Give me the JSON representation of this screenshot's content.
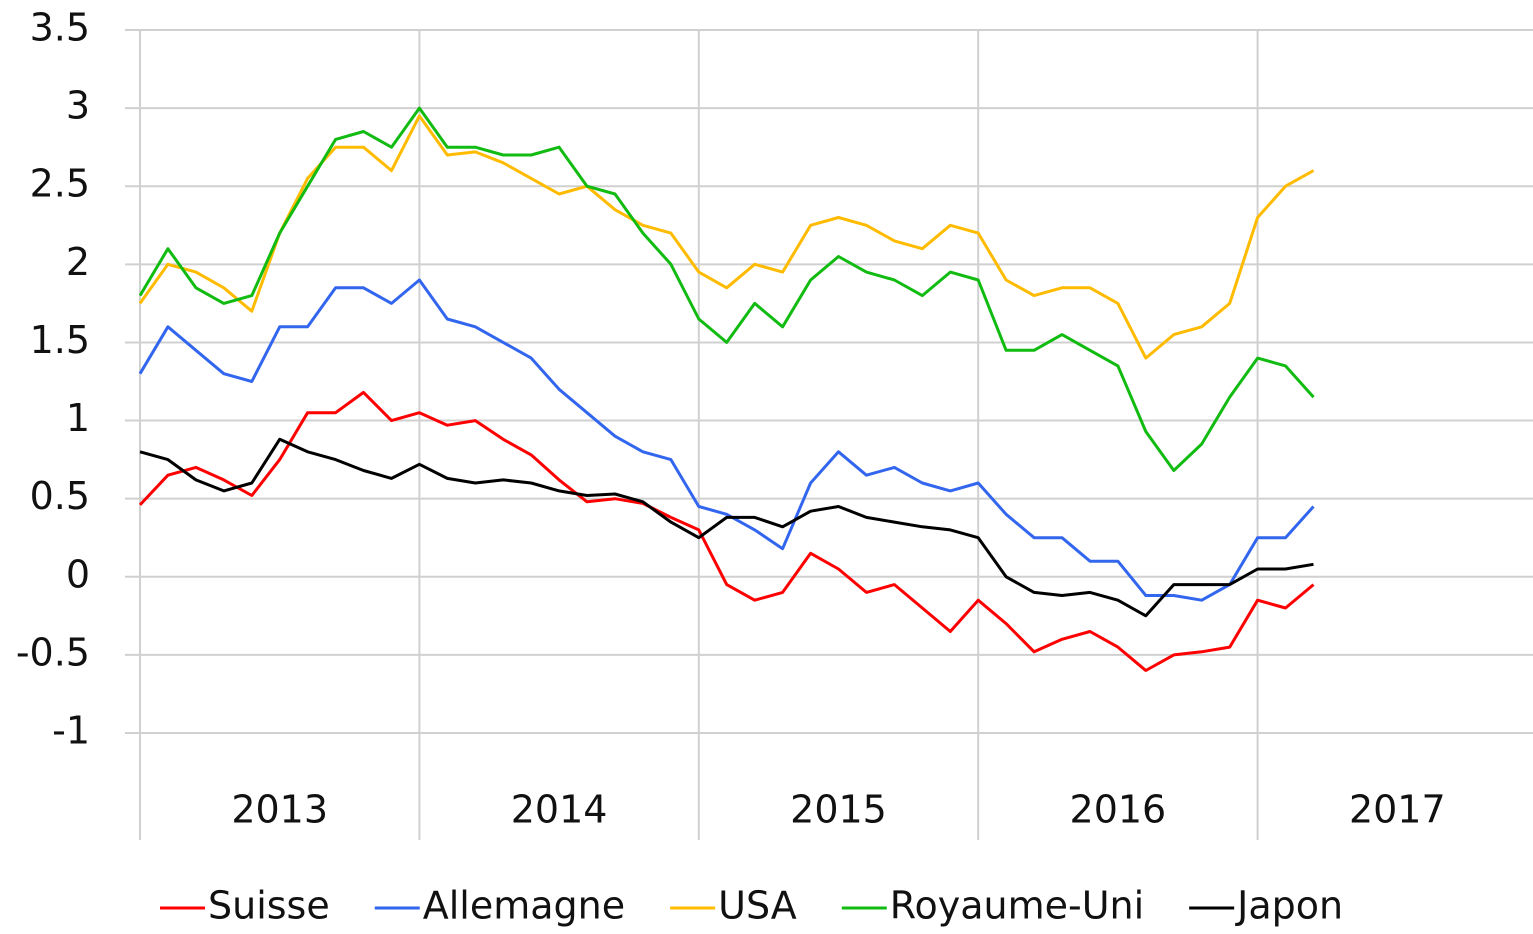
{
  "chart_data": {
    "type": "line",
    "x": [
      2013,
      2013.1,
      2013.2,
      2013.3,
      2013.4,
      2013.5,
      2013.6,
      2013.7,
      2013.8,
      2013.9,
      2014,
      2014.1,
      2014.2,
      2014.3,
      2014.4,
      2014.5,
      2014.6,
      2014.7,
      2014.8,
      2014.9,
      2015,
      2015.1,
      2015.2,
      2015.3,
      2015.4,
      2015.5,
      2015.6,
      2015.7,
      2015.8,
      2015.9,
      2016,
      2016.1,
      2016.2,
      2016.3,
      2016.4,
      2016.5,
      2016.6,
      2016.7,
      2016.8,
      2016.9,
      2017,
      2017.1,
      2017.2
    ],
    "xlim": [
      2013,
      2018
    ],
    "xticks": [
      2013,
      2014,
      2015,
      2016,
      2017,
      2018
    ],
    "x_labels": [
      2013,
      2014,
      2015,
      2016,
      2017
    ],
    "ylim": [
      -1,
      3.5
    ],
    "yticks": [
      -1,
      -0.5,
      0,
      0.5,
      1,
      1.5,
      2,
      2.5,
      3,
      3.5
    ],
    "grid": true,
    "legend": "bottom",
    "series": [
      {
        "name": "Suisse",
        "color": "#ff0000",
        "values": [
          0.46,
          0.65,
          0.7,
          0.62,
          0.52,
          0.75,
          1.05,
          1.05,
          1.18,
          1.0,
          1.05,
          0.97,
          1.0,
          0.88,
          0.78,
          0.62,
          0.48,
          0.5,
          0.47,
          0.38,
          0.3,
          -0.05,
          -0.15,
          -0.1,
          0.15,
          0.05,
          -0.1,
          -0.05,
          -0.2,
          -0.35,
          -0.15,
          -0.3,
          -0.48,
          -0.4,
          -0.35,
          -0.45,
          -0.6,
          -0.5,
          -0.48,
          -0.45,
          -0.15,
          -0.2,
          -0.05
        ]
      },
      {
        "name": "Allemagne",
        "color": "#3366ee",
        "values": [
          1.3,
          1.6,
          1.45,
          1.3,
          1.25,
          1.6,
          1.6,
          1.85,
          1.85,
          1.75,
          1.9,
          1.65,
          1.6,
          1.5,
          1.4,
          1.2,
          1.05,
          0.9,
          0.8,
          0.75,
          0.45,
          0.4,
          0.3,
          0.18,
          0.6,
          0.8,
          0.65,
          0.7,
          0.6,
          0.55,
          0.6,
          0.4,
          0.25,
          0.25,
          0.1,
          0.1,
          -0.12,
          -0.12,
          -0.15,
          -0.05,
          0.25,
          0.25,
          0.45
        ]
      },
      {
        "name": "USA",
        "color": "#ffbb00",
        "values": [
          1.75,
          2.0,
          1.95,
          1.85,
          1.7,
          2.2,
          2.55,
          2.75,
          2.75,
          2.6,
          2.95,
          2.7,
          2.72,
          2.65,
          2.55,
          2.45,
          2.5,
          2.35,
          2.25,
          2.2,
          1.95,
          1.85,
          2.0,
          1.95,
          2.25,
          2.3,
          2.25,
          2.15,
          2.1,
          2.25,
          2.2,
          1.9,
          1.8,
          1.85,
          1.85,
          1.75,
          1.4,
          1.55,
          1.6,
          1.75,
          2.3,
          2.5,
          2.6
        ]
      },
      {
        "name": "Royaume-Uni",
        "color": "#11bb11",
        "values": [
          1.8,
          2.1,
          1.85,
          1.75,
          1.8,
          2.2,
          2.5,
          2.8,
          2.85,
          2.75,
          3.0,
          2.75,
          2.75,
          2.7,
          2.7,
          2.75,
          2.5,
          2.45,
          2.2,
          2.0,
          1.65,
          1.5,
          1.75,
          1.6,
          1.9,
          2.05,
          1.95,
          1.9,
          1.8,
          1.95,
          1.9,
          1.45,
          1.45,
          1.55,
          1.45,
          1.35,
          0.93,
          0.68,
          0.85,
          1.15,
          1.4,
          1.35,
          1.15
        ]
      },
      {
        "name": "Japon",
        "color": "#000000",
        "values": [
          0.8,
          0.75,
          0.62,
          0.55,
          0.6,
          0.88,
          0.8,
          0.75,
          0.68,
          0.63,
          0.72,
          0.63,
          0.6,
          0.62,
          0.6,
          0.55,
          0.52,
          0.53,
          0.48,
          0.35,
          0.25,
          0.38,
          0.38,
          0.32,
          0.42,
          0.45,
          0.38,
          0.35,
          0.32,
          0.3,
          0.25,
          0.0,
          -0.1,
          -0.12,
          -0.1,
          -0.15,
          -0.25,
          -0.05,
          -0.05,
          -0.05,
          0.05,
          0.05,
          0.08
        ]
      }
    ]
  }
}
